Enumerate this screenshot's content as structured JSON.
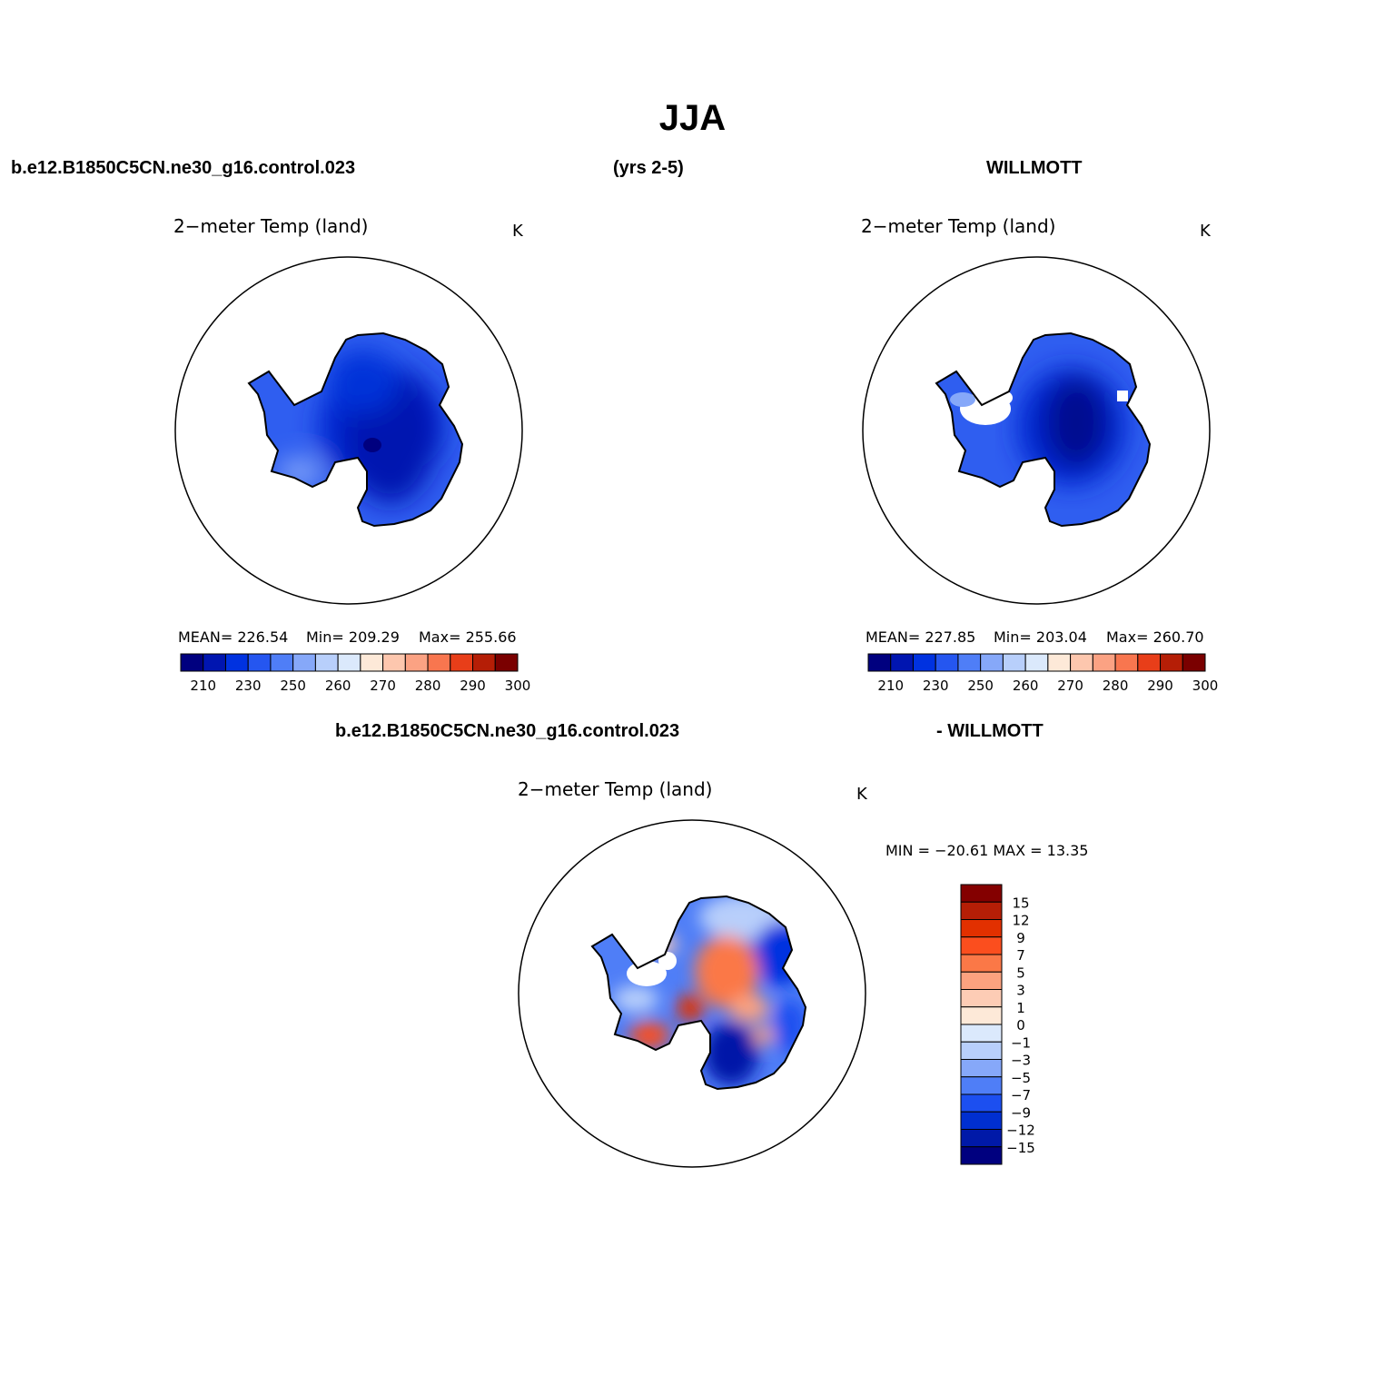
{
  "figure": {
    "title": "JJA",
    "header_left": "b.e12.B1850C5CN.ne30_g16.control.023",
    "header_center": "(yrs 2-5)",
    "header_right": "WILLMOTT"
  },
  "panels": [
    {
      "title": "2−meter Temp (land)",
      "units": "K",
      "stats_mean": "MEAN= 226.54",
      "stats_min": "Min= 209.29",
      "stats_max": "Max= 255.66",
      "colorbar_ticks": [
        "210",
        "230",
        "250",
        "260",
        "270",
        "280",
        "290",
        "300"
      ]
    },
    {
      "title": "2−meter Temp (land)",
      "units": "K",
      "stats_mean": "MEAN= 227.85",
      "stats_min": "Min= 203.04",
      "stats_max": "Max= 260.70",
      "colorbar_ticks": [
        "210",
        "230",
        "250",
        "260",
        "270",
        "280",
        "290",
        "300"
      ]
    }
  ],
  "difference": {
    "header_left": "b.e12.B1850C5CN.ne30_g16.control.023",
    "header_right": "- WILLMOTT",
    "title": "2−meter Temp (land)",
    "units": "K",
    "minmax": "MIN = −20.61  MAX =   13.35",
    "colorbar_ticks": [
      "15",
      "12",
      "9",
      "7",
      "5",
      "3",
      "1",
      "0",
      "−1",
      "−3",
      "−5",
      "−7",
      "−9",
      "−12",
      "−15"
    ]
  },
  "colors": {
    "abs_palette": [
      "#00007f",
      "#0015b0",
      "#0032e0",
      "#2556f0",
      "#4f7ef7",
      "#86a8f9",
      "#b8cffb",
      "#dbe9fc",
      "#fde9d8",
      "#fdc7ae",
      "#fba283",
      "#f8764f",
      "#e83e19",
      "#b51e06",
      "#7a0000"
    ],
    "diff_palette": [
      "#840000",
      "#b51e06",
      "#e23000",
      "#fb4e1e",
      "#fb7847",
      "#fca27f",
      "#fdccb5",
      "#fde9d8",
      "#dbe9fc",
      "#b8cffb",
      "#86a8f9",
      "#4f7ef7",
      "#1c4ff0",
      "#002fd0",
      "#0019a8",
      "#00007f"
    ]
  }
}
